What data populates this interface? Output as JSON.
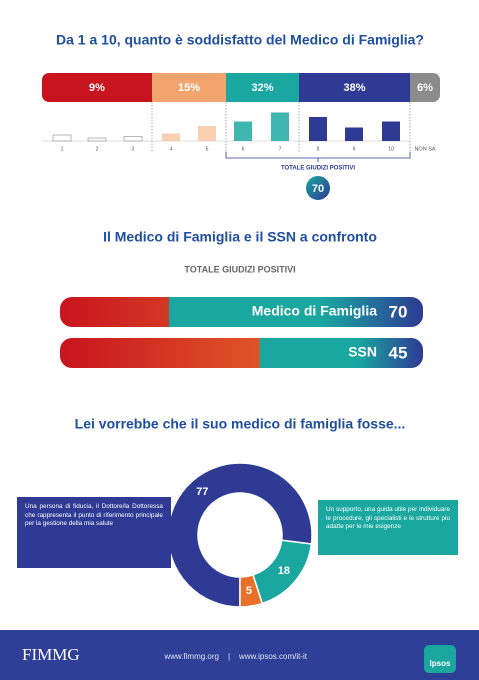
{
  "chart_data": [
    {
      "type": "segments",
      "title": "Da 1 a 10, quanto è soddisfatto del Medico di Famiglia?",
      "values": [
        9,
        15,
        32,
        38,
        6
      ],
      "value_labels": [
        "9%",
        "15%",
        "32%",
        "38%",
        "6%"
      ],
      "colors": [
        "#c8141e",
        "#f2a46f",
        "#1aa7a0",
        "#2e3a94",
        "#8c8c8c"
      ]
    },
    {
      "type": "bar",
      "categories": [
        "1",
        "2",
        "3",
        "4",
        "5",
        "6",
        "7",
        "8",
        "9",
        "10",
        "NON SA"
      ],
      "values": [
        4,
        2,
        3,
        5,
        10,
        13,
        19,
        16,
        9,
        13,
        null
      ],
      "ylim": [
        0,
        20
      ],
      "colors": [
        "#ffffff",
        "#ffffff",
        "#ffffff",
        "#f8cfb0",
        "#f8cfb0",
        "#3fb6b0",
        "#3fb6b0",
        "#2e3a94",
        "#2e3a94",
        "#2e3a94",
        "#ffffff"
      ],
      "annotation": "TOTALE GIUDIZI POSITIVI",
      "total": 70
    },
    {
      "type": "hbar",
      "title": "Il Medico di Famiglia e il SSN a confronto",
      "subtitle": "TOTALE GIUDIZI POSITIVI",
      "categories": [
        "Medico di Famiglia",
        "SSN"
      ],
      "values": [
        70,
        45
      ],
      "xlim": [
        0,
        100
      ]
    },
    {
      "type": "donut",
      "title": "Lei vorrebbe che il suo medico di famiglia fosse...",
      "values": [
        77,
        18,
        5
      ],
      "colors": [
        "#2e3a94",
        "#1aa7a0",
        "#e8712a"
      ],
      "annotations": [
        "Una persona di fiducia, il Dottore/la Dottoressa che rappresenta il punto di riferimento principale per la gestione della mia salute",
        "Un supporto, una guida utile per individuare le procedure, gli specialisti e le strutture più adatte per le mie esigenze"
      ]
    }
  ],
  "footer": {
    "logo_left": "FIMMG",
    "links": [
      "www.fimmg.org",
      "www.ipsos.com/it-it"
    ],
    "separator": "|",
    "logo_right": "Ipsos"
  }
}
